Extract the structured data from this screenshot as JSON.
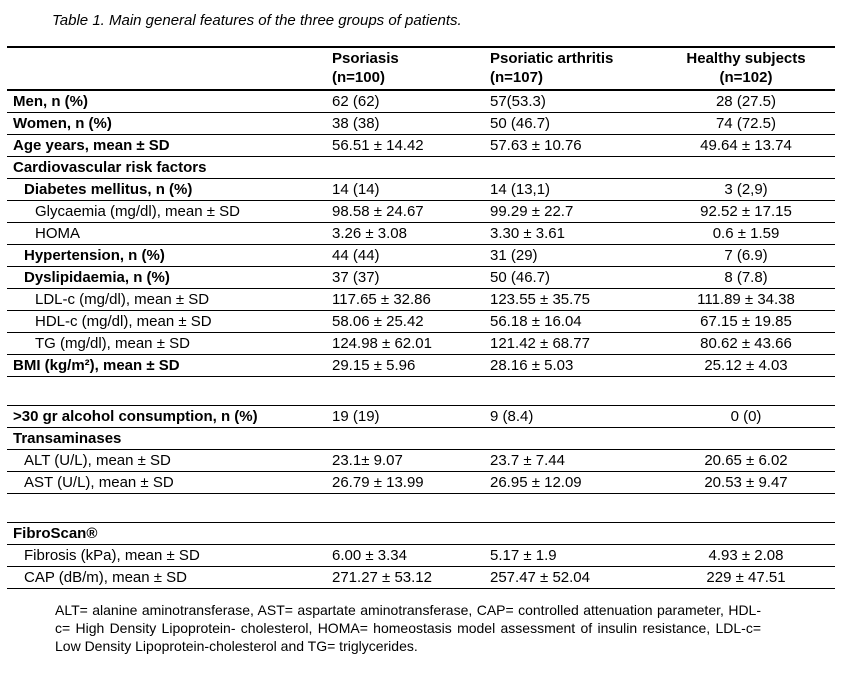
{
  "title": "Table 1. Main general features of the three groups of patients.",
  "table": {
    "header": {
      "col0": "",
      "col1": "Psoriasis\n(n=100)",
      "col2": "Psoriatic arthritis\n(n=107)",
      "col3": "Healthy subjects\n(n=102)"
    },
    "rows": [
      {
        "type": "data",
        "bold": true,
        "indent": 0,
        "label": "Men, n (%)",
        "values": [
          "62 (62)",
          "57(53.3)",
          "28 (27.5)"
        ]
      },
      {
        "type": "data",
        "bold": true,
        "indent": 0,
        "label": "Women, n (%)",
        "values": [
          "38 (38)",
          "50 (46.7)",
          "74 (72.5)"
        ]
      },
      {
        "type": "data",
        "bold": true,
        "indent": 0,
        "label": "Age years, mean ± SD",
        "values": [
          "56.51 ± 14.42",
          "57.63 ± 10.76",
          "49.64 ± 13.74"
        ]
      },
      {
        "type": "section",
        "bold": true,
        "indent": 0,
        "label": "Cardiovascular risk factors",
        "values": [
          "",
          "",
          ""
        ]
      },
      {
        "type": "data",
        "bold": true,
        "indent": 1,
        "label": "Diabetes mellitus, n (%)",
        "values": [
          "14 (14)",
          "14 (13,1)",
          "3 (2,9)"
        ]
      },
      {
        "type": "data",
        "bold": false,
        "indent": 2,
        "label": "Glycaemia (mg/dl), mean ± SD",
        "values": [
          "98.58 ± 24.67",
          "99.29 ± 22.7",
          "92.52 ± 17.15"
        ]
      },
      {
        "type": "data",
        "bold": false,
        "indent": 2,
        "label": "HOMA",
        "values": [
          "3.26 ± 3.08",
          "3.30 ± 3.61",
          "0.6 ± 1.59"
        ]
      },
      {
        "type": "data",
        "bold": true,
        "indent": 1,
        "label": "Hypertension, n (%)",
        "values": [
          "44 (44)",
          "31 (29)",
          "7 (6.9)"
        ]
      },
      {
        "type": "data",
        "bold": true,
        "indent": 1,
        "label": "Dyslipidaemia, n (%)",
        "values": [
          "37 (37)",
          "50 (46.7)",
          "8 (7.8)"
        ]
      },
      {
        "type": "data",
        "bold": false,
        "indent": 2,
        "label": "LDL-c (mg/dl), mean ± SD",
        "values": [
          "117.65 ± 32.86",
          "123.55 ± 35.75",
          "111.89 ± 34.38"
        ]
      },
      {
        "type": "data",
        "bold": false,
        "indent": 2,
        "label": "HDL-c (mg/dl), mean ± SD",
        "values": [
          "58.06 ± 25.42",
          "56.18 ± 16.04",
          "67.15 ± 19.85"
        ]
      },
      {
        "type": "data",
        "bold": false,
        "indent": 2,
        "label": "TG (mg/dl), mean ± SD",
        "values": [
          "124.98 ± 62.01",
          "121.42 ± 68.77",
          "80.62 ± 43.66"
        ]
      },
      {
        "type": "data",
        "bold": true,
        "indent": 0,
        "label": "BMI (kg/m²), mean ± SD",
        "values": [
          "29.15 ± 5.96",
          "28.16 ± 5.03",
          "25.12 ± 4.03"
        ]
      },
      {
        "type": "spacer"
      },
      {
        "type": "data",
        "bold": true,
        "indent": 0,
        "label": ">30 gr alcohol consumption, n (%)",
        "values": [
          "19 (19)",
          "9 (8.4)",
          "0 (0)"
        ]
      },
      {
        "type": "section",
        "bold": true,
        "indent": 0,
        "label": "Transaminases",
        "values": [
          "",
          "",
          ""
        ]
      },
      {
        "type": "data",
        "bold": false,
        "indent": 1,
        "label": "ALT (U/L), mean ± SD",
        "values": [
          "23.1± 9.07",
          "23.7 ± 7.44",
          "20.65 ± 6.02"
        ]
      },
      {
        "type": "data",
        "bold": false,
        "indent": 1,
        "label": "AST (U/L), mean ± SD",
        "values": [
          "26.79 ± 13.99",
          "26.95 ± 12.09",
          "20.53 ± 9.47"
        ]
      },
      {
        "type": "spacer"
      },
      {
        "type": "section",
        "bold": true,
        "indent": 0,
        "label": "FibroScan®",
        "values": [
          "",
          "",
          ""
        ]
      },
      {
        "type": "data",
        "bold": false,
        "indent": 1,
        "label": "Fibrosis (kPa), mean ± SD",
        "values": [
          "6.00 ± 3.34",
          "5.17 ± 1.9",
          "4.93 ± 2.08"
        ]
      },
      {
        "type": "data",
        "bold": false,
        "indent": 1,
        "label": "CAP (dB/m), mean ± SD",
        "values": [
          "271.27 ± 53.12",
          "257.47 ± 52.04",
          "229 ± 47.51"
        ]
      }
    ]
  },
  "footnote": "ALT= alanine aminotransferase, AST= aspartate aminotransferase, CAP= controlled attenuation parameter, HDL-c= High Density Lipoprotein- cholesterol, HOMA= homeostasis model assessment of insulin resistance, LDL-c= Low Density Lipoprotein-cholesterol and TG= triglycerides."
}
